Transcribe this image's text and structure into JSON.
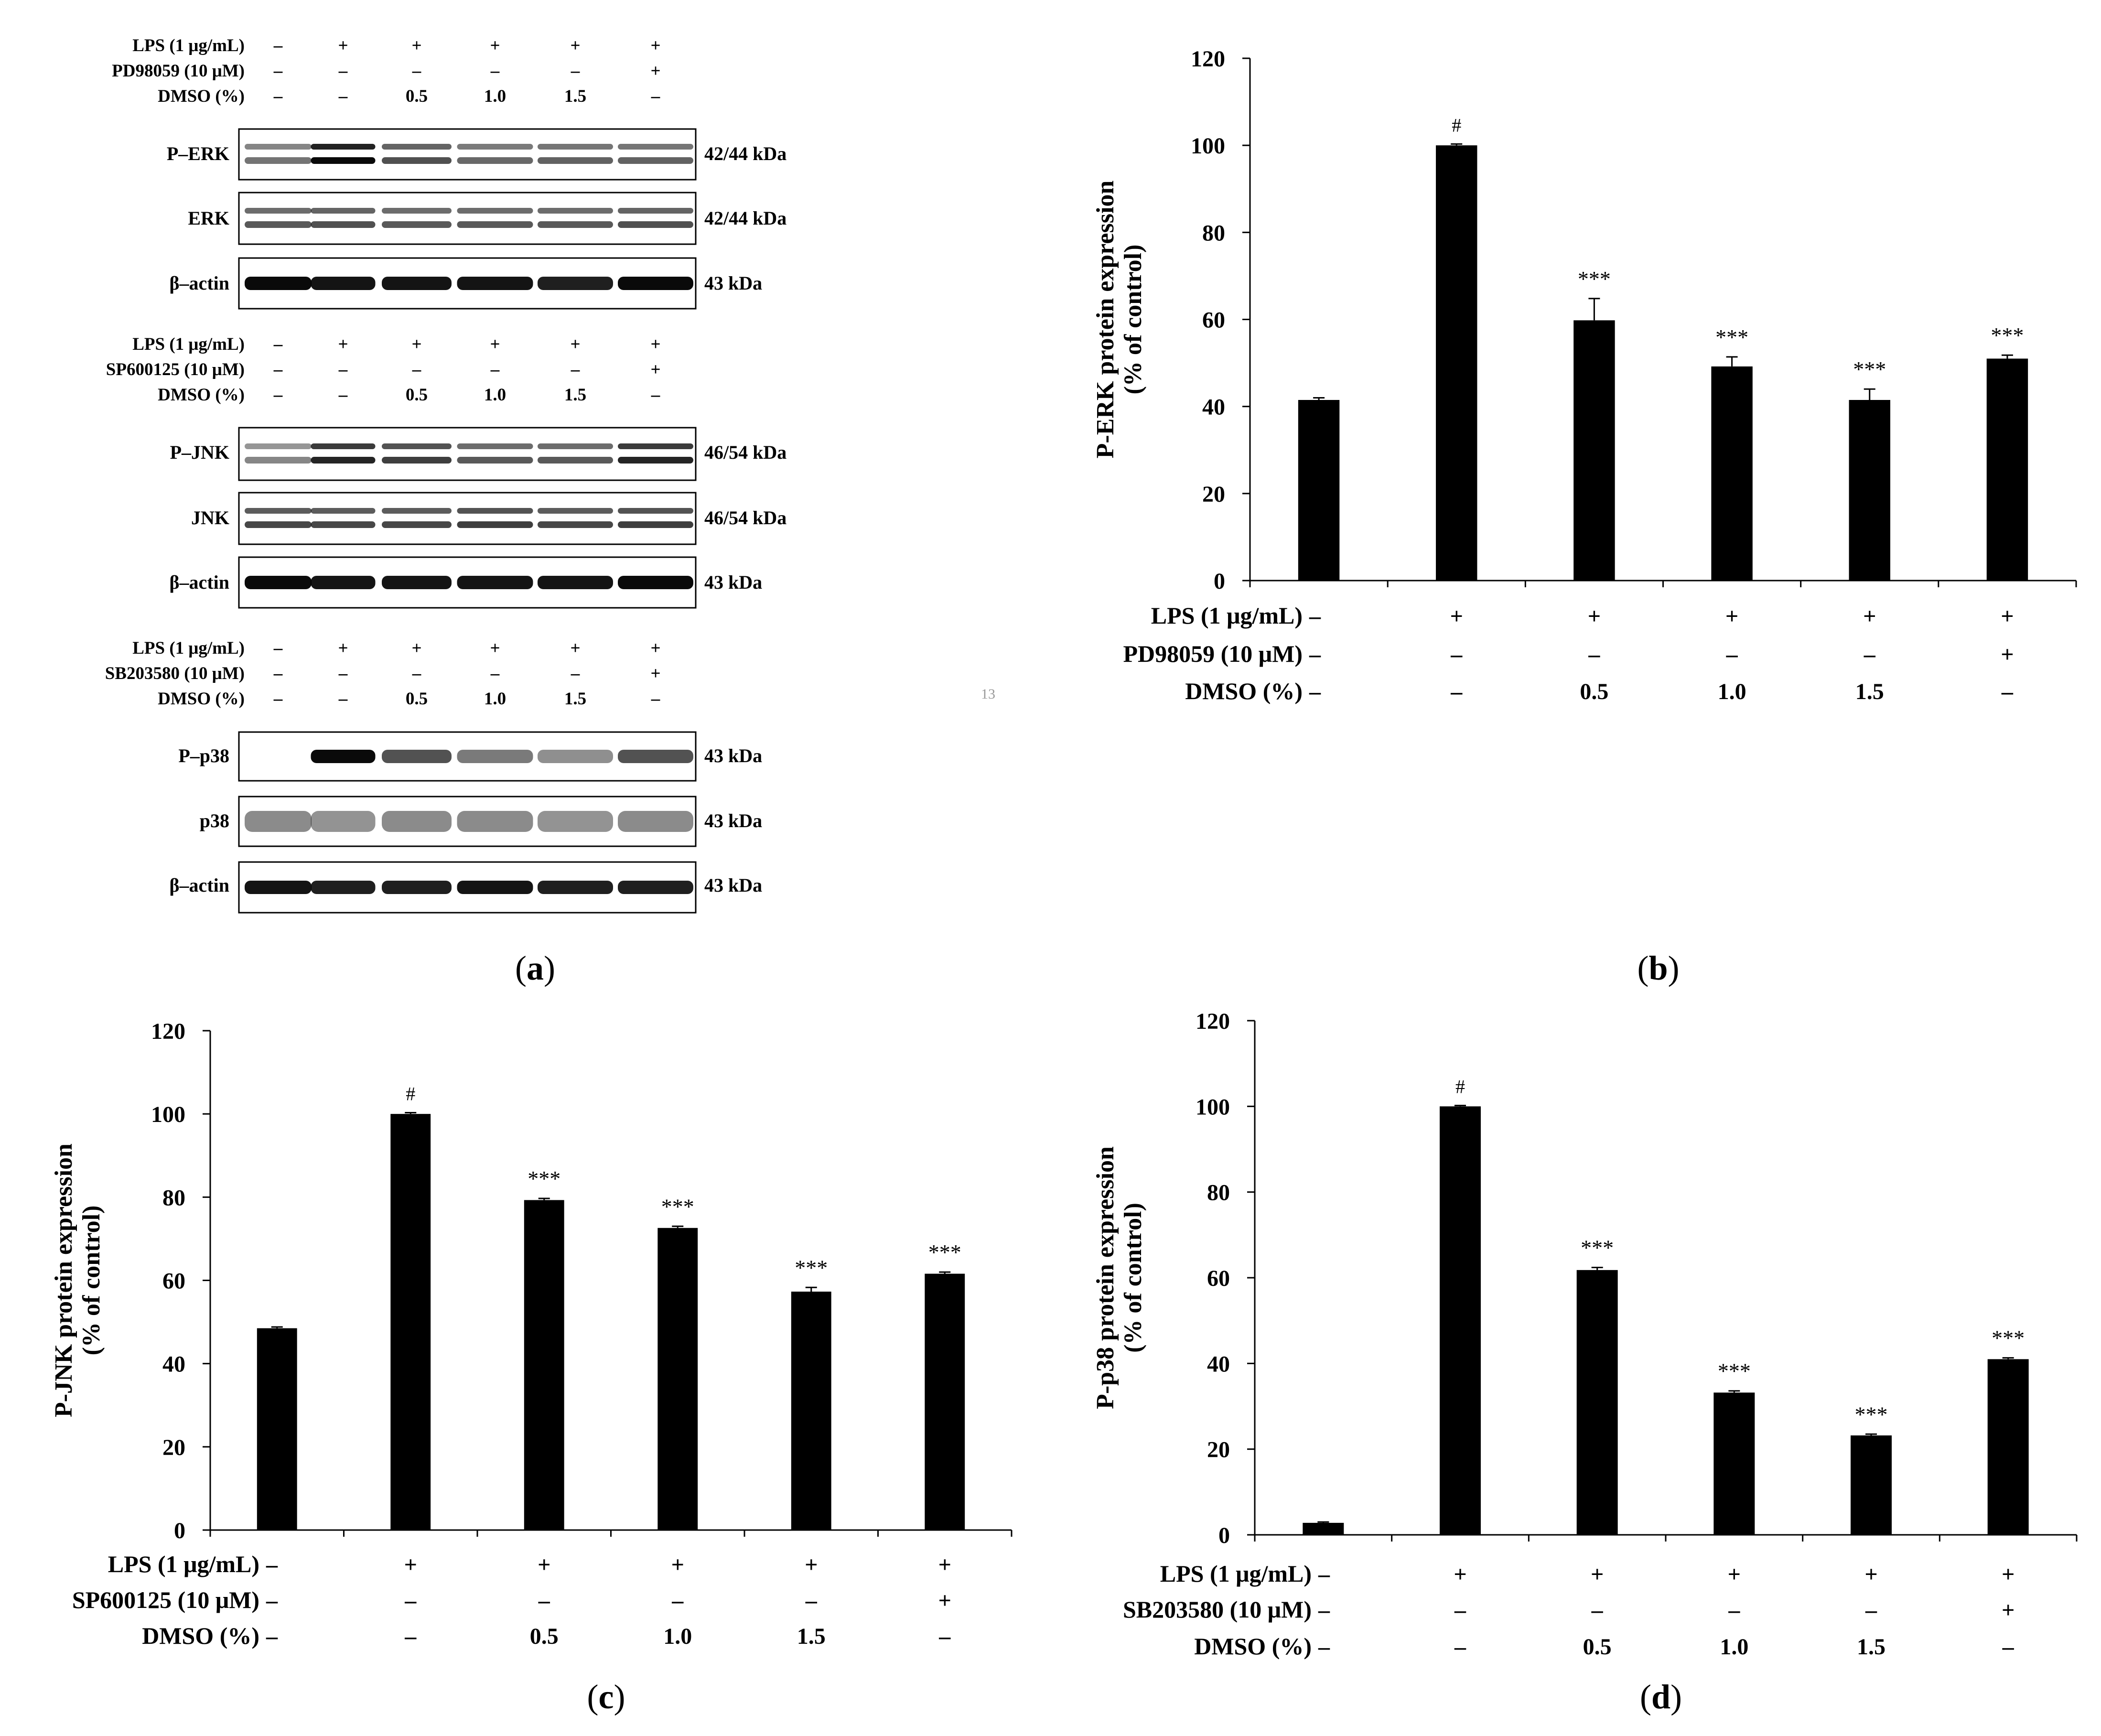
{
  "page_number": "13",
  "blots": {
    "panel_label": "a",
    "groups": [
      {
        "conditions": [
          {
            "label": "LPS (1 μg/mL)",
            "values": [
              "–",
              "+",
              "+",
              "+",
              "+",
              "+"
            ]
          },
          {
            "label": "PD98059 (10 μM)",
            "values": [
              "–",
              "–",
              "–",
              "–",
              "–",
              "+"
            ]
          },
          {
            "label": "DMSO (%)",
            "values": [
              "–",
              "–",
              "0.5",
              "1.0",
              "1.5",
              "–"
            ]
          }
        ],
        "rows": [
          {
            "name": "P–ERK",
            "size": "42/44 kDa",
            "pattern": "doublet",
            "intensity": [
              0.35,
              0.95,
              0.55,
              0.42,
              0.45,
              0.45
            ]
          },
          {
            "name": "ERK",
            "size": "42/44 kDa",
            "pattern": "doublet",
            "intensity": [
              0.5,
              0.55,
              0.5,
              0.5,
              0.5,
              0.55
            ]
          },
          {
            "name": "β–actin",
            "size": "43 kDa",
            "pattern": "single",
            "intensity": [
              0.95,
              0.9,
              0.9,
              0.9,
              0.85,
              0.95
            ]
          }
        ]
      },
      {
        "conditions": [
          {
            "label": "LPS (1 μg/mL)",
            "values": [
              "–",
              "+",
              "+",
              "+",
              "+",
              "+"
            ]
          },
          {
            "label": "SP600125 (10 μM)",
            "values": [
              "–",
              "–",
              "–",
              "–",
              "–",
              "+"
            ]
          },
          {
            "label": "DMSO (%)",
            "values": [
              "–",
              "–",
              "0.5",
              "1.0",
              "1.5",
              "–"
            ]
          }
        ],
        "rows": [
          {
            "name": "P–JNK",
            "size": "46/54 kDa",
            "pattern": "doublet",
            "intensity": [
              0.25,
              0.8,
              0.65,
              0.5,
              0.5,
              0.8
            ]
          },
          {
            "name": "JNK",
            "size": "46/54 kDa",
            "pattern": "doublet",
            "intensity": [
              0.6,
              0.6,
              0.6,
              0.65,
              0.6,
              0.65
            ]
          },
          {
            "name": "β–actin",
            "size": "43 kDa",
            "pattern": "single",
            "intensity": [
              0.95,
              0.9,
              0.9,
              0.9,
              0.9,
              0.95
            ]
          }
        ]
      },
      {
        "conditions": [
          {
            "label": "LPS (1 μg/mL)",
            "values": [
              "–",
              "+",
              "+",
              "+",
              "+",
              "+"
            ]
          },
          {
            "label": "SB203580 (10 μM)",
            "values": [
              "–",
              "–",
              "–",
              "–",
              "–",
              "+"
            ]
          },
          {
            "label": "DMSO (%)",
            "values": [
              "–",
              "–",
              "0.5",
              "1.0",
              "1.5",
              "–"
            ]
          }
        ],
        "rows": [
          {
            "name": "P–p38",
            "size": "43 kDa",
            "pattern": "single",
            "intensity": [
              0.0,
              0.95,
              0.6,
              0.4,
              0.3,
              0.6
            ]
          },
          {
            "name": "p38",
            "size": "43 kDa",
            "pattern": "smear",
            "intensity": [
              0.55,
              0.5,
              0.55,
              0.55,
              0.5,
              0.55
            ]
          },
          {
            "name": "β–actin",
            "size": "43 kDa",
            "pattern": "single",
            "intensity": [
              0.9,
              0.85,
              0.85,
              0.9,
              0.85,
              0.85
            ]
          }
        ]
      }
    ]
  },
  "chart_data": [
    {
      "type": "bar",
      "panel_label": "b",
      "ylabel_line1": "P-ERK protein expression",
      "ylabel_line2": "(% of control)",
      "ylim": [
        0,
        120
      ],
      "yticks": [
        "0",
        "20",
        "40",
        "60",
        "80",
        "100",
        "120"
      ],
      "values": [
        41.5,
        100,
        59.8,
        49.2,
        41.5,
        51.0
      ],
      "errors": [
        0.5,
        0.3,
        5.0,
        2.2,
        2.5,
        0.8
      ],
      "significance": [
        "",
        "#",
        "***",
        "***",
        "***",
        "***"
      ],
      "conditions": [
        {
          "label": "LPS (1 μg/mL)",
          "values": [
            "–",
            "+",
            "+",
            "+",
            "+",
            "+"
          ]
        },
        {
          "label": "PD98059 (10 μM)",
          "values": [
            "–",
            "–",
            "–",
            "–",
            "–",
            "+"
          ]
        },
        {
          "label": "DMSO (%)",
          "values": [
            "–",
            "–",
            "0.5",
            "1.0",
            "1.5",
            "–"
          ]
        }
      ]
    },
    {
      "type": "bar",
      "panel_label": "c",
      "ylabel_line1": "P-JNK protein expression",
      "ylabel_line2": "(% of control)",
      "ylim": [
        0,
        120
      ],
      "yticks": [
        "0",
        "20",
        "40",
        "60",
        "80",
        "100",
        "120"
      ],
      "values": [
        48.5,
        100,
        79.3,
        72.6,
        57.3,
        61.6
      ],
      "errors": [
        0.3,
        0.3,
        0.4,
        0.4,
        1.0,
        0.4
      ],
      "significance": [
        "",
        "#",
        "***",
        "***",
        "***",
        "***"
      ],
      "conditions": [
        {
          "label": "LPS (1 μg/mL)",
          "values": [
            "–",
            "+",
            "+",
            "+",
            "+",
            "+"
          ]
        },
        {
          "label": "SP600125 (10 μM)",
          "values": [
            "–",
            "–",
            "–",
            "–",
            "–",
            "+"
          ]
        },
        {
          "label": "DMSO (%)",
          "values": [
            "–",
            "–",
            "0.5",
            "1.0",
            "1.5",
            "–"
          ]
        }
      ]
    },
    {
      "type": "bar",
      "panel_label": "d",
      "ylabel_line1": "P-p38 protein expression",
      "ylabel_line2": "(% of control)",
      "ylim": [
        0,
        120
      ],
      "yticks": [
        "0",
        "20",
        "40",
        "60",
        "80",
        "100",
        "120"
      ],
      "values": [
        2.8,
        100,
        61.8,
        33.2,
        23.2,
        41.0
      ],
      "errors": [
        0.2,
        0.2,
        0.6,
        0.4,
        0.3,
        0.3
      ],
      "significance": [
        "",
        "#",
        "***",
        "***",
        "***",
        "***"
      ],
      "conditions": [
        {
          "label": "LPS (1 μg/mL)",
          "values": [
            "–",
            "+",
            "+",
            "+",
            "+",
            "+"
          ]
        },
        {
          "label": "SB203580 (10 μM)",
          "values": [
            "–",
            "–",
            "–",
            "–",
            "–",
            "+"
          ]
        },
        {
          "label": "DMSO (%)",
          "values": [
            "–",
            "–",
            "0.5",
            "1.0",
            "1.5",
            "–"
          ]
        }
      ]
    }
  ]
}
